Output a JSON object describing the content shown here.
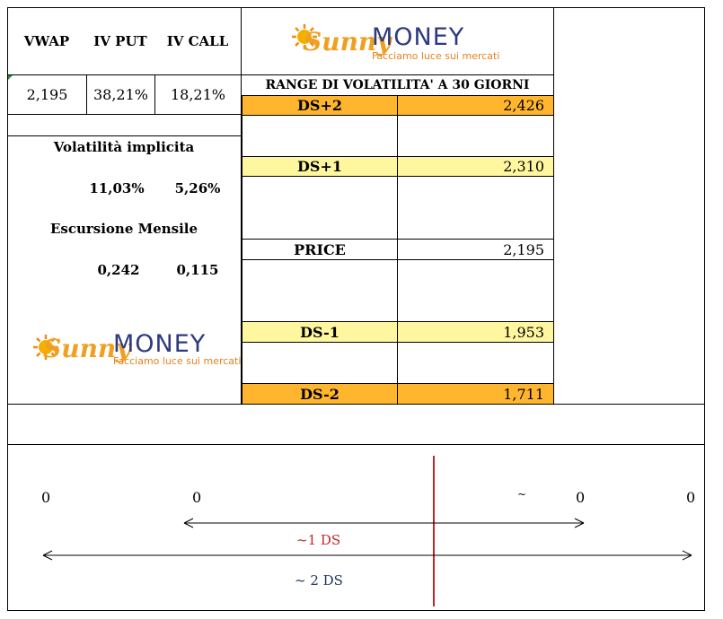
{
  "header": {
    "vwap_label": "VWAP",
    "ivput_label": "IV PUT",
    "ivcall_label": "IV CALL",
    "vwap_value": "2,195",
    "ivput_value": "38,21%",
    "ivcall_value": "18,21%"
  },
  "logo": {
    "sunny": "Sunny",
    "money": "MONEY",
    "tagline": "Facciamo luce sui mercati",
    "colors": {
      "sun": "#F0A020",
      "money": "#2D3A80",
      "tagline": "#E8801E"
    }
  },
  "left": {
    "vol_title": "Volatilità implicita",
    "vol_put": "11,03%",
    "vol_call": "5,26%",
    "exc_title": "Escursione Mensile",
    "exc_put": "0,242",
    "exc_call": "0,115"
  },
  "range": {
    "title": "RANGE DI VOLATILITA' A 30 GIORNI",
    "rows": [
      {
        "label": "DS+2",
        "value": "2,426"
      },
      {
        "label": "DS+1",
        "value": "2,310"
      },
      {
        "label": "PRICE",
        "value": "2,195"
      },
      {
        "label": "DS-1",
        "value": "1,953"
      },
      {
        "label": "DS-2",
        "value": "1,711"
      }
    ]
  },
  "bottom": {
    "zeros": [
      "0",
      "0",
      "0",
      "0"
    ],
    "tilde": "~",
    "one_ds": "~1 DS",
    "two_ds": "~ 2 DS",
    "colors": {
      "one_ds": "#C0282A",
      "two_ds": "#1F3864",
      "center_line": "#C0282A"
    }
  }
}
